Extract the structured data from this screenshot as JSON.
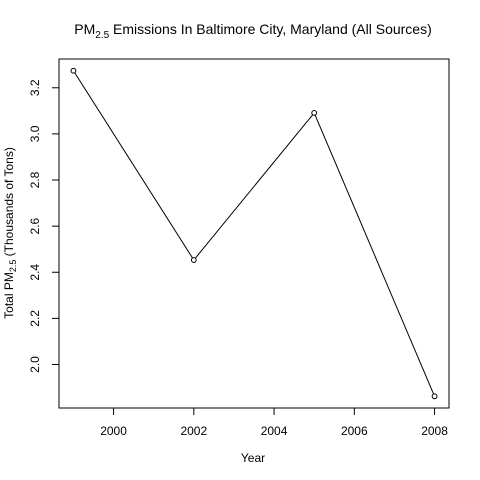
{
  "chart_data": {
    "type": "line",
    "title": {
      "prefix": "PM",
      "subscript": "2.5",
      "suffix": " Emissions In Baltimore City, Maryland (All Sources)"
    },
    "xlabel": "Year",
    "ylabel": {
      "prefix": "Total PM",
      "subscript": "2.5",
      "suffix": " (Thousands of Tons)"
    },
    "x": [
      1999,
      2002,
      2005,
      2008
    ],
    "y": [
      3.274,
      2.453,
      3.091,
      1.862
    ],
    "xlim": [
      1998.64,
      2008.36
    ],
    "ylim": [
      1.8113,
      3.3248
    ],
    "xticks": [
      2000,
      2002,
      2004,
      2006,
      2008
    ],
    "yticks": [
      2.0,
      2.2,
      2.4,
      2.6,
      2.8,
      3.0,
      3.2
    ],
    "ytick_labels": [
      "2.0",
      "2.2",
      "2.4",
      "2.6",
      "2.8",
      "3.0",
      "3.2"
    ],
    "marker": "open-circle",
    "line_color": "#000000",
    "grid": false,
    "legend": "none"
  }
}
